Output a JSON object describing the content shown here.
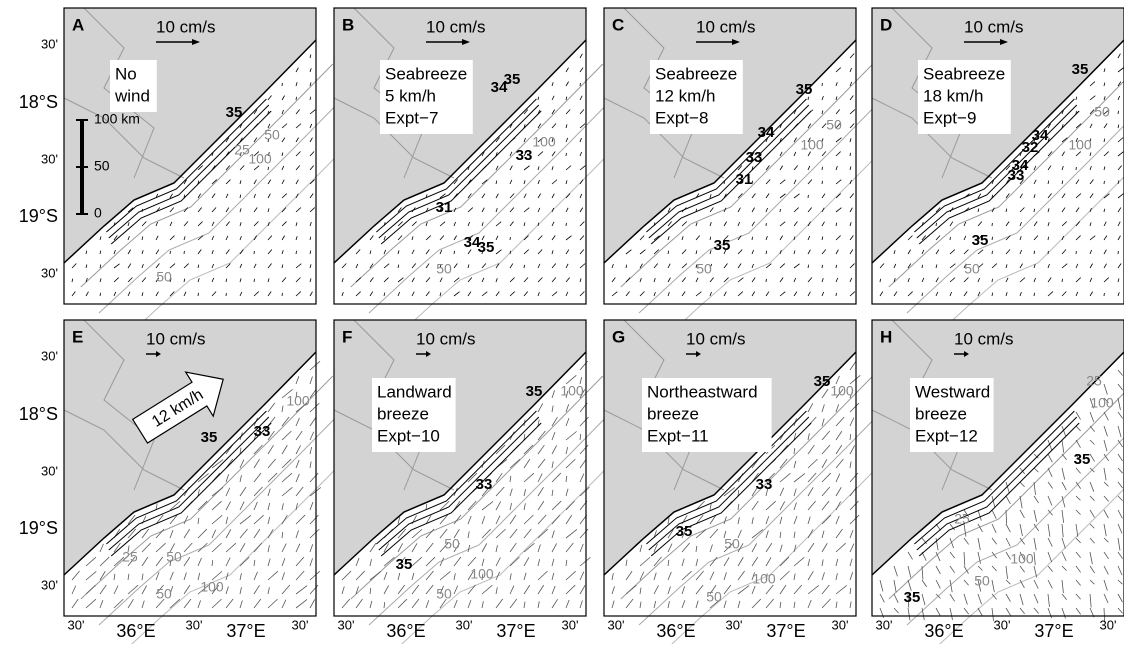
{
  "panels": [
    {
      "letter": "A",
      "scale": "10 cm/s",
      "label": [
        "No",
        "wind"
      ],
      "salinity_labels": [
        "35"
      ],
      "isobath_labels": [
        "25",
        "50",
        "100",
        "50"
      ]
    },
    {
      "letter": "B",
      "scale": "10 cm/s",
      "label": [
        "Seabreeze",
        "5 km/h",
        "Expt−7"
      ],
      "salinity_labels": [
        "34",
        "35",
        "33",
        "31",
        "34",
        "35"
      ],
      "isobath_labels": [
        "100",
        "50"
      ]
    },
    {
      "letter": "C",
      "scale": "10 cm/s",
      "label": [
        "Seabreeze",
        "12 km/h",
        "Expt−8"
      ],
      "salinity_labels": [
        "35",
        "34",
        "33",
        "31",
        "35"
      ],
      "isobath_labels": [
        "50",
        "100",
        "50"
      ]
    },
    {
      "letter": "D",
      "scale": "10 cm/s",
      "label": [
        "Seabreeze",
        "18 km/h",
        "Expt−9"
      ],
      "salinity_labels": [
        "35",
        "34",
        "33",
        "32",
        "34",
        "35"
      ],
      "isobath_labels": [
        "50",
        "100",
        "50"
      ]
    },
    {
      "letter": "E",
      "scale": "10 cm/s",
      "label": [],
      "salinity_labels": [
        "35",
        "33"
      ],
      "isobath_labels": [
        "100",
        "25",
        "50",
        "100",
        "50"
      ]
    },
    {
      "letter": "F",
      "scale": "10 cm/s",
      "label": [
        "Landward",
        "breeze",
        "Expt−10"
      ],
      "salinity_labels": [
        "35",
        "33",
        "35"
      ],
      "isobath_labels": [
        "100",
        "50",
        "100",
        "50"
      ]
    },
    {
      "letter": "G",
      "scale": "10 cm/s",
      "label": [
        "Northeastward",
        "breeze",
        "Expt−11"
      ],
      "salinity_labels": [
        "35",
        "33",
        "35"
      ],
      "isobath_labels": [
        "100",
        "50",
        "100",
        "50"
      ]
    },
    {
      "letter": "H",
      "scale": "10 cm/s",
      "label": [
        "Westward",
        "breeze",
        "Expt−12"
      ],
      "salinity_labels": [
        "35",
        "35"
      ],
      "isobath_labels": [
        "25",
        "100",
        "25",
        "50",
        "100"
      ]
    }
  ],
  "y_axis_labels": [
    "30'",
    "18°S",
    "30'",
    "19°S",
    "30'"
  ],
  "x_axis_labels": [
    "30'",
    "36°E",
    "30'",
    "37°E",
    "30'"
  ],
  "scale_bar": {
    "top": "100 km",
    "mid": "50",
    "zero": "0"
  },
  "wind_arrow": "12 km/h"
}
